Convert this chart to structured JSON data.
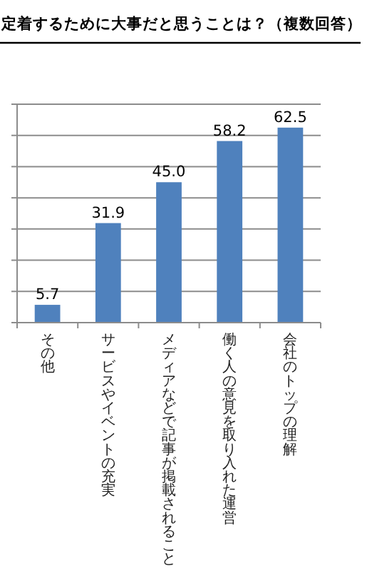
{
  "chart_data": {
    "type": "bar",
    "title": "定着するために大事だと思うことは？（複数回答）",
    "categories": [
      "その他",
      "サービスやイベントの充実",
      "メディアなどで記事が掲載されること",
      "働く人の意見を取り入れた運営",
      "会社のトップの理解"
    ],
    "values": [
      5.7,
      31.9,
      45.0,
      58.2,
      62.5
    ],
    "value_labels": [
      "5.7",
      "31.9",
      "45.0",
      "58.2",
      "62.5"
    ],
    "color": "#4f81bd",
    "ylim": [
      0,
      70
    ],
    "yticks": [
      {
        "value": 0,
        "label": null
      },
      {
        "value": 10,
        "label": null
      },
      {
        "value": 20,
        "label": null
      },
      {
        "value": 30,
        "label": null
      },
      {
        "value": 40,
        "label": null
      },
      {
        "value": 50,
        "label": null
      },
      {
        "value": 60,
        "label": null
      },
      {
        "value": 70,
        "label": null
      }
    ],
    "tick_labels": "x",
    "grid": "y"
  }
}
